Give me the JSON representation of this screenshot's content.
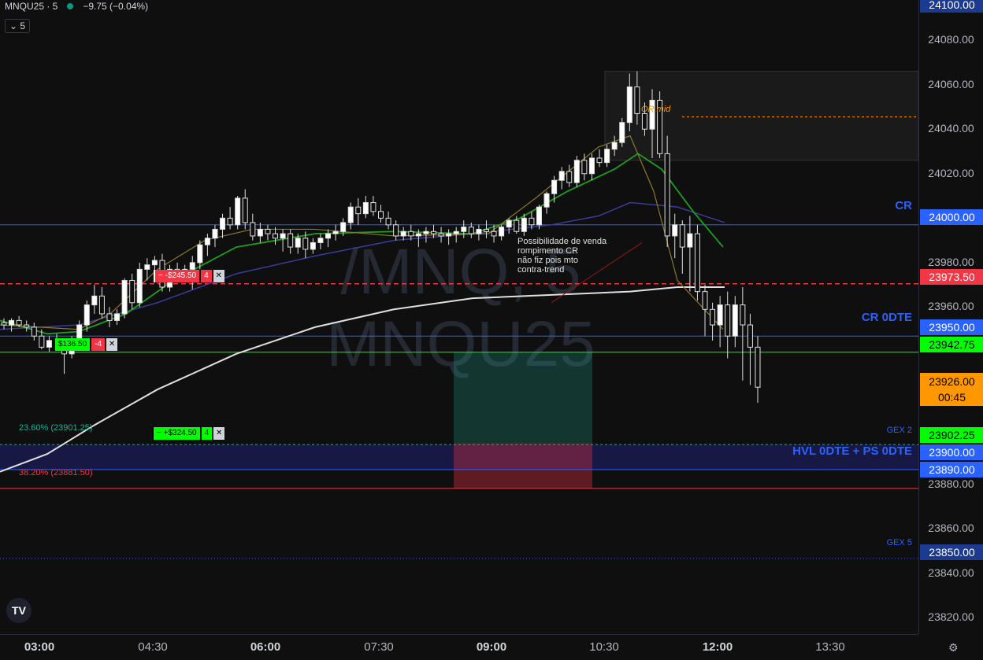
{
  "legend": {
    "symbol": "MNQU25 · 5",
    "change": "−9.75 (−0.04%)"
  },
  "interval_button": "5",
  "watermark": {
    "line1": "/MNQ, 5",
    "line2": "MNQU25"
  },
  "note": {
    "lines": [
      "Possibilidade de venda",
      "rompimento CR",
      "não fiz pois mto",
      "contra-trend"
    ]
  },
  "logo": "TV",
  "price_axis": {
    "ticks": [
      "24080.00",
      "24060.00",
      "24040.00",
      "24020.00",
      "23980.00",
      "23960.00",
      "23880.00",
      "23860.00",
      "23840.00",
      "23820.00"
    ],
    "labels": {
      "top": "24100.00",
      "cr": "24000.00",
      "red": "23973.50",
      "cr0dte": "23950.00",
      "green": "23942.75",
      "current": "23926.00",
      "countdown": "00:45",
      "gex2": "23902.25",
      "hvl": "23900.00",
      "blue2": "23890.00",
      "gex5": "23850.00"
    }
  },
  "time_axis": {
    "ticks": [
      "03:00",
      "04:30",
      "06:00",
      "07:30",
      "09:00",
      "10:30",
      "12:00",
      "13:30"
    ]
  },
  "levels": {
    "cr": "CR",
    "cr0dte": "CR 0DTE",
    "hvl": "HVL 0DTE + PS 0DTE",
    "gex2": "GEX 2",
    "gex5": "GEX 5",
    "or_mid": "OR mid",
    "fib_236": "23.60% (23901.25)",
    "fib_382": "38.20% (23881.50)"
  },
  "orders": [
    {
      "pl": "~ -$245.50",
      "qty": "4",
      "close": "✕"
    },
    {
      "pl": "$136.50",
      "qty": "-4",
      "close": "✕"
    },
    {
      "pl": "~ +$324.50",
      "qty": "4",
      "close": "✕"
    }
  ],
  "colors": {
    "bg": "#0f0f0f",
    "blue": "#2962ff",
    "red": "#f23645",
    "green": "#22ab94",
    "lime": "#00ff00",
    "orange": "#ff9800"
  },
  "chart_data": {
    "type": "candlestick",
    "ylim": [
      23810,
      24102
    ],
    "x_ticks": [
      "03:00",
      "04:30",
      "06:00",
      "07:30",
      "09:00",
      "10:30",
      "12:00",
      "13:30"
    ],
    "candles": [
      [
        23956,
        23958,
        23953,
        23955
      ],
      [
        23955,
        23958,
        23952,
        23957
      ],
      [
        23957,
        23959,
        23954,
        23955
      ],
      [
        23955,
        23957,
        23952,
        23954
      ],
      [
        23954,
        23956,
        23948,
        23950
      ],
      [
        23950,
        23953,
        23944,
        23945
      ],
      [
        23945,
        23950,
        23943,
        23948
      ],
      [
        23948,
        23951,
        23945,
        23946
      ],
      [
        23946,
        23948,
        23933,
        23942
      ],
      [
        23942,
        23950,
        23940,
        23948
      ],
      [
        23948,
        23957,
        23946,
        23955
      ],
      [
        23955,
        23966,
        23952,
        23964
      ],
      [
        23964,
        23973,
        23960,
        23968
      ],
      [
        23968,
        23972,
        23958,
        23960
      ],
      [
        23960,
        23963,
        23954,
        23957
      ],
      [
        23957,
        23962,
        23955,
        23960
      ],
      [
        23960,
        23976,
        23958,
        23975
      ],
      [
        23975,
        23978,
        23962,
        23965
      ],
      [
        23965,
        23983,
        23963,
        23980
      ],
      [
        23980,
        23985,
        23975,
        23982
      ],
      [
        23982,
        23986,
        23977,
        23984
      ],
      [
        23984,
        23987,
        23970,
        23972
      ],
      [
        23972,
        23982,
        23970,
        23980
      ],
      [
        23980,
        23983,
        23975,
        23978
      ],
      [
        23978,
        23982,
        23975,
        23980
      ],
      [
        23980,
        23986,
        23971,
        23983
      ],
      [
        23983,
        23993,
        23980,
        23991
      ],
      [
        23991,
        23996,
        23986,
        23994
      ],
      [
        23994,
        24000,
        23990,
        23998
      ],
      [
        23998,
        24005,
        23994,
        24003
      ],
      [
        24003,
        24008,
        23998,
        24000
      ],
      [
        24000,
        24013,
        23998,
        24012
      ],
      [
        24012,
        24016,
        23998,
        24001
      ],
      [
        24001,
        24005,
        23993,
        23995
      ],
      [
        23995,
        24001,
        23992,
        23998
      ],
      [
        23998,
        24000,
        23993,
        23996
      ],
      [
        23996,
        23999,
        23991,
        23994
      ],
      [
        23994,
        23998,
        23988,
        23996
      ],
      [
        23996,
        23998,
        23987,
        23990
      ],
      [
        23990,
        23996,
        23987,
        23994
      ],
      [
        23994,
        23997,
        23985,
        23989
      ],
      [
        23989,
        23994,
        23987,
        23992
      ],
      [
        23992,
        23996,
        23989,
        23994
      ],
      [
        23994,
        23998,
        23990,
        23996
      ],
      [
        23996,
        24000,
        23993,
        23997
      ],
      [
        23997,
        24003,
        23995,
        24001
      ],
      [
        24001,
        24010,
        23998,
        24008
      ],
      [
        24008,
        24012,
        24000,
        24005
      ],
      [
        24005,
        24013,
        24003,
        24010
      ],
      [
        24010,
        24013,
        24004,
        24006
      ],
      [
        24006,
        24009,
        24001,
        24003
      ],
      [
        24003,
        24006,
        23998,
        24000
      ],
      [
        24000,
        24002,
        23993,
        23995
      ],
      [
        23995,
        23999,
        23993,
        23997
      ],
      [
        23997,
        24000,
        23993,
        23995
      ],
      [
        23995,
        23998,
        23990,
        23996
      ],
      [
        23996,
        23999,
        23992,
        23997
      ],
      [
        23997,
        24000,
        23994,
        23996
      ],
      [
        23996,
        23999,
        23992,
        23995
      ],
      [
        23995,
        23998,
        23991,
        23996
      ],
      [
        23996,
        23999,
        23992,
        23997
      ],
      [
        23997,
        24002,
        23994,
        23999
      ],
      [
        23999,
        24001,
        23994,
        23996
      ],
      [
        23996,
        24000,
        23993,
        23998
      ],
      [
        23998,
        24002,
        23994,
        23997
      ],
      [
        23997,
        24000,
        23992,
        23995
      ],
      [
        23995,
        24000,
        23993,
        23999
      ],
      [
        23999,
        24003,
        23996,
        24002
      ],
      [
        24002,
        24004,
        23996,
        23997
      ],
      [
        23997,
        24005,
        23995,
        24003
      ],
      [
        24003,
        24006,
        23998,
        24000
      ],
      [
        24000,
        24009,
        23998,
        24008
      ],
      [
        24008,
        24015,
        24005,
        24014
      ],
      [
        24014,
        24022,
        24010,
        24020
      ],
      [
        24020,
        24026,
        24016,
        24024
      ],
      [
        24024,
        24027,
        24017,
        24019
      ],
      [
        24019,
        24031,
        24017,
        24029
      ],
      [
        24029,
        24032,
        24020,
        24023
      ],
      [
        24023,
        24032,
        24020,
        24030
      ],
      [
        24030,
        24034,
        24026,
        24028
      ],
      [
        24028,
        24036,
        24026,
        24034
      ],
      [
        24034,
        24040,
        24031,
        24037
      ],
      [
        24037,
        24048,
        24035,
        24046
      ],
      [
        24046,
        24068,
        24042,
        24062
      ],
      [
        24062,
        24069,
        24045,
        24050
      ],
      [
        24050,
        24055,
        24040,
        24043
      ],
      [
        24043,
        24061,
        24030,
        24056
      ],
      [
        24056,
        24060,
        24030,
        24032
      ],
      [
        24032,
        24040,
        23990,
        23995
      ],
      [
        23995,
        24005,
        23985,
        24000
      ],
      [
        24000,
        24002,
        23978,
        23990
      ],
      [
        23990,
        24004,
        23970,
        23996
      ],
      [
        23996,
        24000,
        23966,
        23970
      ],
      [
        23970,
        23973,
        23950,
        23962
      ],
      [
        23962,
        23965,
        23948,
        23955
      ],
      [
        23955,
        23968,
        23945,
        23964
      ],
      [
        23964,
        23970,
        23940,
        23950
      ],
      [
        23950,
        23968,
        23945,
        23964
      ],
      [
        23964,
        23972,
        23930,
        23955
      ],
      [
        23955,
        23960,
        23928,
        23945
      ],
      [
        23945,
        23950,
        23920,
        23927
      ]
    ]
  }
}
